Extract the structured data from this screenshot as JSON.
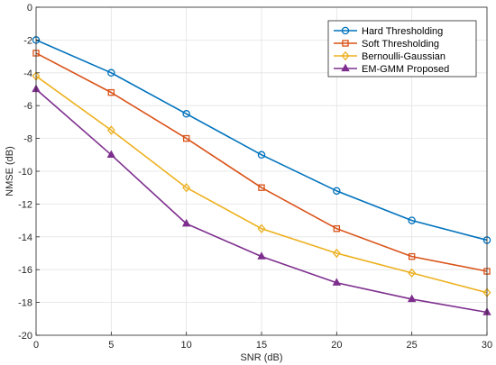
{
  "chart_data": {
    "type": "line",
    "title": "",
    "xlabel": "SNR (dB)",
    "ylabel": "NMSE (dB)",
    "x": [
      0,
      5,
      10,
      15,
      20,
      25,
      30
    ],
    "xlim": [
      0,
      30
    ],
    "ylim": [
      -20,
      0
    ],
    "xticks": [
      "0",
      "5",
      "10",
      "15",
      "20",
      "25",
      "30"
    ],
    "yticks": [
      "0",
      "-2",
      "-4",
      "-6",
      "-8",
      "-10",
      "-12",
      "-14",
      "-16",
      "-18",
      "-20"
    ],
    "grid": true,
    "legend_position": "top-right",
    "series": [
      {
        "name": "Hard Thresholding",
        "color": "#0072BD",
        "marker": "circle",
        "values": [
          -2.0,
          -4.0,
          -6.5,
          -9.0,
          -11.2,
          -13.0,
          -14.2
        ]
      },
      {
        "name": "Soft Thresholding",
        "color": "#D95319",
        "marker": "square",
        "values": [
          -2.8,
          -5.2,
          -8.0,
          -11.0,
          -13.5,
          -15.2,
          -16.1
        ]
      },
      {
        "name": "Bernoulli-Gaussian",
        "color": "#EDB120",
        "marker": "diamond",
        "values": [
          -4.2,
          -7.5,
          -11.0,
          -13.5,
          -15.0,
          -16.2,
          -17.4
        ]
      },
      {
        "name": "EM-GMM Proposed",
        "color": "#7E2F8E",
        "marker": "triangle",
        "values": [
          -5.0,
          -9.0,
          -13.2,
          -15.2,
          -16.8,
          -17.8,
          -18.6
        ]
      }
    ]
  }
}
